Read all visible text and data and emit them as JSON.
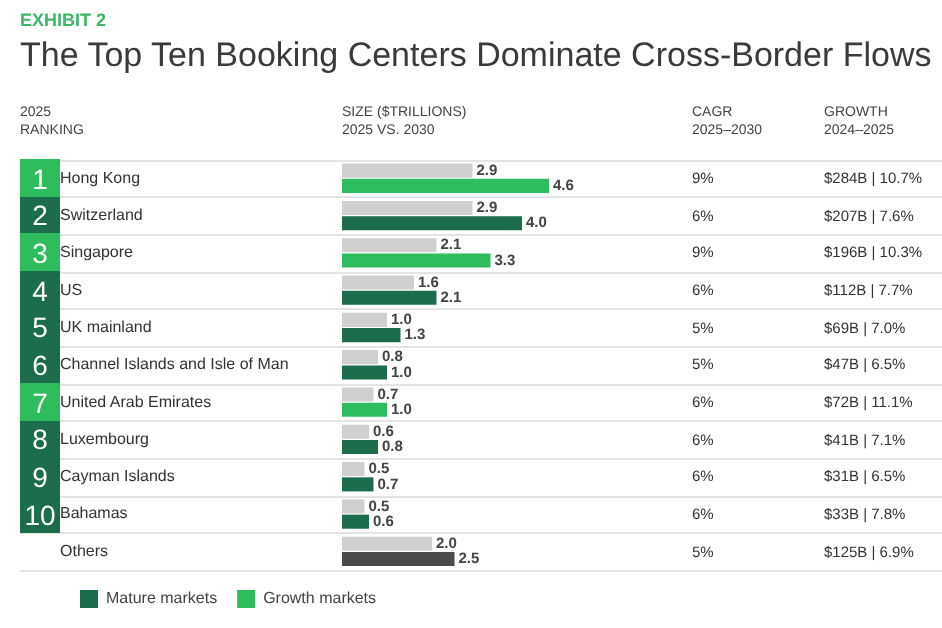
{
  "chart_data": {
    "type": "bar",
    "orientation": "horizontal",
    "subtitle": "EXHIBIT 2",
    "title": "The Top Ten Booking Centers Dominate Cross-Border Flows",
    "xlabel": "SIZE ($TRILLIONS)\n2025 VS. 2030",
    "categories": [
      "Hong Kong",
      "Switzerland",
      "Singapore",
      "US",
      "UK mainland",
      "Channel Islands and Isle of Man",
      "United Arab Emirates",
      "Luxembourg",
      "Cayman Islands",
      "Bahamas",
      "Others"
    ],
    "series": [
      {
        "color": "#d0d0d0",
        "values": [
          2.9,
          2.9,
          2.1,
          1.6,
          1.0,
          0.8,
          0.7,
          0.6,
          0.5,
          0.5,
          2.0
        ],
        "value_labels": [
          "2.9",
          "2.9",
          "2.1",
          "1.6",
          "1.0",
          "0.8",
          "0.7",
          "0.6",
          "0.5",
          "0.5",
          "2.0"
        ]
      },
      {
        "name": "Mature markets",
        "color": "#1b6d4b",
        "values": [
          null,
          4.0,
          null,
          2.1,
          1.3,
          1.0,
          null,
          0.8,
          0.7,
          0.6,
          null
        ],
        "value_labels": [
          null,
          "4.0",
          null,
          "2.1",
          "1.3",
          "1.0",
          null,
          "0.8",
          "0.7",
          "0.6",
          null
        ]
      },
      {
        "name": "Growth markets",
        "color": "#2dbd5c",
        "values": [
          4.6,
          null,
          3.3,
          null,
          null,
          null,
          1.0,
          null,
          null,
          null,
          null
        ],
        "value_labels": [
          "4.6",
          null,
          "3.3",
          null,
          null,
          null,
          "1.0",
          null,
          null,
          null,
          null
        ]
      },
      {
        "color": "#4a4a4a",
        "values": [
          null,
          null,
          null,
          null,
          null,
          null,
          null,
          null,
          null,
          null,
          2.5
        ],
        "value_labels": [
          null,
          null,
          null,
          null,
          null,
          null,
          null,
          null,
          null,
          null,
          "2.5"
        ]
      }
    ],
    "annotations": [
      "2025\nRANKING",
      "CAGR\n2025–2030",
      "GROWTH\n2024–2025",
      "1",
      "9%",
      "$284B | 10.7%",
      "2",
      "6%",
      "$207B | 7.6%",
      "3",
      "9%",
      "$196B | 10.3%",
      "4",
      "6%",
      "$112B | 7.7%",
      "5",
      "5%",
      "$69B | 7.0%",
      "6",
      "5%",
      "$47B | 6.5%",
      "7",
      "6%",
      "$72B | 11.1%",
      "8",
      "6%",
      "$41B | 7.1%",
      "9",
      "6%",
      "$31B | 6.5%",
      "10",
      "6%",
      "$33B | 7.8%",
      "5%",
      "$125B | 6.9%"
    ],
    "tick_labels": "y",
    "legend": "bottom"
  }
}
